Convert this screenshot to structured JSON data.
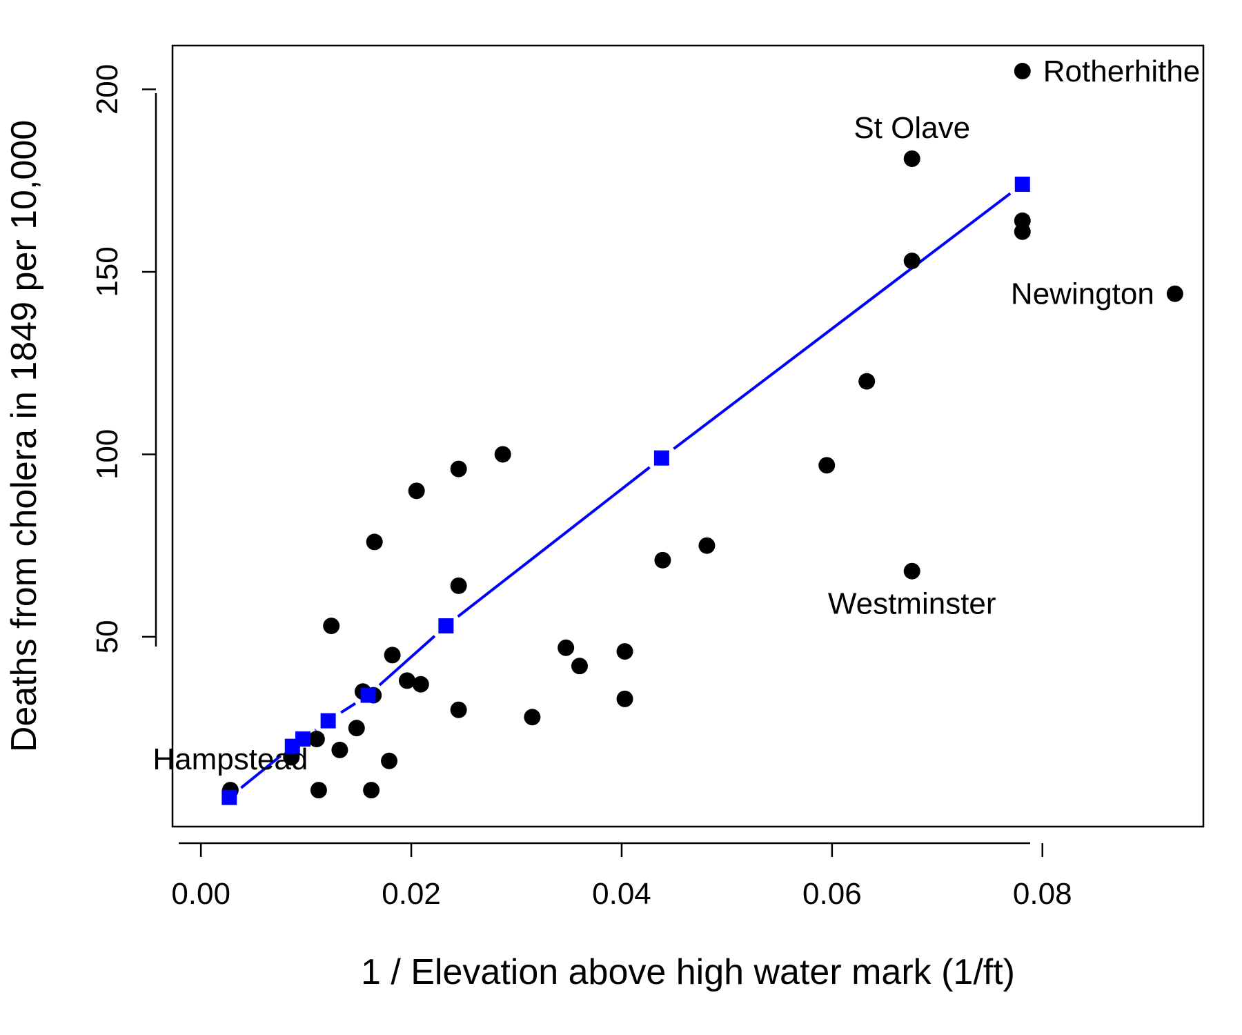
{
  "chart_data": {
    "type": "scatter",
    "xlabel": "1 / Elevation above high water mark (1/ft)",
    "ylabel": "Deaths from cholera in 1849 per 10,000",
    "xlim": [
      -0.0027,
      0.0953
    ],
    "ylim": [
      -2,
      212
    ],
    "xticks": [
      "0.00",
      "0.02",
      "0.04",
      "0.06",
      "0.08"
    ],
    "xtick_values": [
      0,
      0.02,
      0.04,
      0.06,
      0.08
    ],
    "yticks": [
      "50",
      "100",
      "150",
      "200"
    ],
    "ytick_values": [
      50,
      100,
      150,
      200
    ],
    "grid": false,
    "series": [
      {
        "marker": "circle",
        "color": "#000000",
        "points": [
          {
            "x": 0.0028,
            "y": 8
          },
          {
            "x": 0.0086,
            "y": 17
          },
          {
            "x": 0.011,
            "y": 22
          },
          {
            "x": 0.0112,
            "y": 8
          },
          {
            "x": 0.0124,
            "y": 53
          },
          {
            "x": 0.0132,
            "y": 19
          },
          {
            "x": 0.0148,
            "y": 25
          },
          {
            "x": 0.0154,
            "y": 35
          },
          {
            "x": 0.0164,
            "y": 34
          },
          {
            "x": 0.0162,
            "y": 8
          },
          {
            "x": 0.0165,
            "y": 76
          },
          {
            "x": 0.0179,
            "y": 16
          },
          {
            "x": 0.0182,
            "y": 45
          },
          {
            "x": 0.0196,
            "y": 38
          },
          {
            "x": 0.0205,
            "y": 90
          },
          {
            "x": 0.0209,
            "y": 37
          },
          {
            "x": 0.0245,
            "y": 96
          },
          {
            "x": 0.0245,
            "y": 64
          },
          {
            "x": 0.0245,
            "y": 30
          },
          {
            "x": 0.0287,
            "y": 100
          },
          {
            "x": 0.0315,
            "y": 28
          },
          {
            "x": 0.0347,
            "y": 47
          },
          {
            "x": 0.036,
            "y": 42
          },
          {
            "x": 0.0403,
            "y": 46
          },
          {
            "x": 0.0403,
            "y": 33
          },
          {
            "x": 0.0439,
            "y": 71
          },
          {
            "x": 0.0481,
            "y": 75
          },
          {
            "x": 0.0595,
            "y": 97
          },
          {
            "x": 0.0633,
            "y": 120
          },
          {
            "x": 0.0676,
            "y": 181
          },
          {
            "x": 0.0676,
            "y": 153
          },
          {
            "x": 0.0676,
            "y": 68
          },
          {
            "x": 0.0781,
            "y": 205
          },
          {
            "x": 0.0781,
            "y": 164
          },
          {
            "x": 0.0781,
            "y": 161
          },
          {
            "x": 0.0926,
            "y": 144
          }
        ]
      },
      {
        "marker": "square",
        "color": "#0000ff",
        "line": true,
        "line_style": "dashed",
        "points": [
          {
            "x": 0.0027,
            "y": 6
          },
          {
            "x": 0.0087,
            "y": 20
          },
          {
            "x": 0.0097,
            "y": 22
          },
          {
            "x": 0.0121,
            "y": 27
          },
          {
            "x": 0.0159,
            "y": 34
          },
          {
            "x": 0.0233,
            "y": 53
          },
          {
            "x": 0.0438,
            "y": 99
          },
          {
            "x": 0.0781,
            "y": 174
          }
        ]
      }
    ],
    "annotations": [
      {
        "text": "Rotherhithe",
        "x": 0.0781,
        "y": 205,
        "pos": "right"
      },
      {
        "text": "St Olave",
        "x": 0.0676,
        "y": 181,
        "pos": "above"
      },
      {
        "text": "Newington",
        "x": 0.0926,
        "y": 144,
        "pos": "left"
      },
      {
        "text": "Westminster",
        "x": 0.0676,
        "y": 68,
        "pos": "below"
      },
      {
        "text": "Hampstead",
        "x": 0.0028,
        "y": 8,
        "pos": "above"
      }
    ]
  }
}
